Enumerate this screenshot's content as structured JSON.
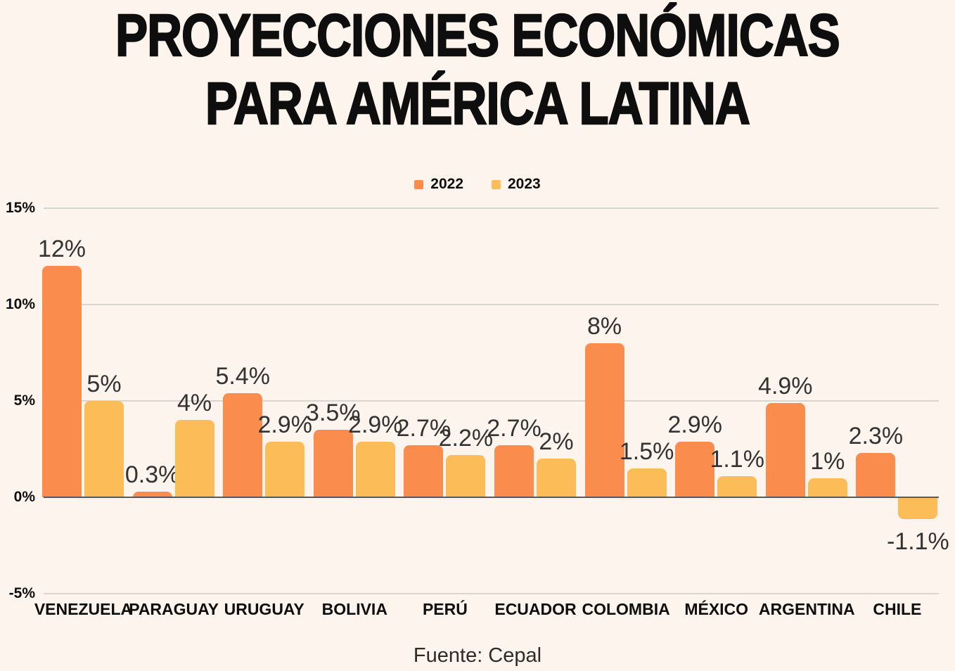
{
  "title": {
    "line1": "PROYECCIONES ECONÓMICAS",
    "line2": "PARA AMÉRICA LATINA"
  },
  "legend": [
    {
      "label": "2022",
      "color": "#FA8C4D"
    },
    {
      "label": "2023",
      "color": "#FCBD59"
    }
  ],
  "source": "Fuente: Cepal",
  "colors": {
    "background": "#FDF4ED",
    "bar_2022": "#FA8C4D",
    "bar_2023": "#FCBD59",
    "gridline": "#DBD5CF",
    "axis_line": "#5C5854",
    "heading_text": "#0E0E0E",
    "data_label_text": "#333333"
  },
  "chart_data": {
    "type": "bar",
    "categories": [
      "VENEZUELA",
      "PARAGUAY",
      "URUGUAY",
      "BOLIVIA",
      "PERÚ",
      "ECUADOR",
      "COLOMBIA",
      "MÉXICO",
      "ARGENTINA",
      "CHILE"
    ],
    "series": [
      {
        "name": "2022",
        "color": "#FA8C4D",
        "values": [
          12,
          0.3,
          5.4,
          3.5,
          2.7,
          2.7,
          8,
          2.9,
          4.9,
          2.3
        ],
        "labels": [
          "12%",
          "0.3%",
          "5.4%",
          "3.5%",
          "2.7%",
          "2.7%",
          "8%",
          "2.9%",
          "4.9%",
          "2.3%"
        ]
      },
      {
        "name": "2023",
        "color": "#FCBD59",
        "values": [
          5,
          4,
          2.9,
          2.9,
          2.2,
          2,
          1.5,
          1.1,
          1,
          -1.1
        ],
        "labels": [
          "5%",
          "4%",
          "2.9%",
          "2.9%",
          "2.2%",
          "2%",
          "1.5%",
          "1.1%",
          "1%",
          "-1.1%"
        ]
      }
    ],
    "title": "PROYECCIONES ECONÓMICAS PARA AMÉRICA LATINA",
    "xlabel": "",
    "ylabel": "",
    "ylim": [
      -5,
      15
    ],
    "yticks": [
      {
        "value": 15,
        "label": "15%"
      },
      {
        "value": 10,
        "label": "10%"
      },
      {
        "value": 5,
        "label": "5%"
      },
      {
        "value": 0,
        "label": "0%"
      },
      {
        "value": -5,
        "label": "-5%"
      }
    ],
    "grid": true,
    "legend_position": "top-center",
    "annotation_source": "Fuente: Cepal"
  }
}
